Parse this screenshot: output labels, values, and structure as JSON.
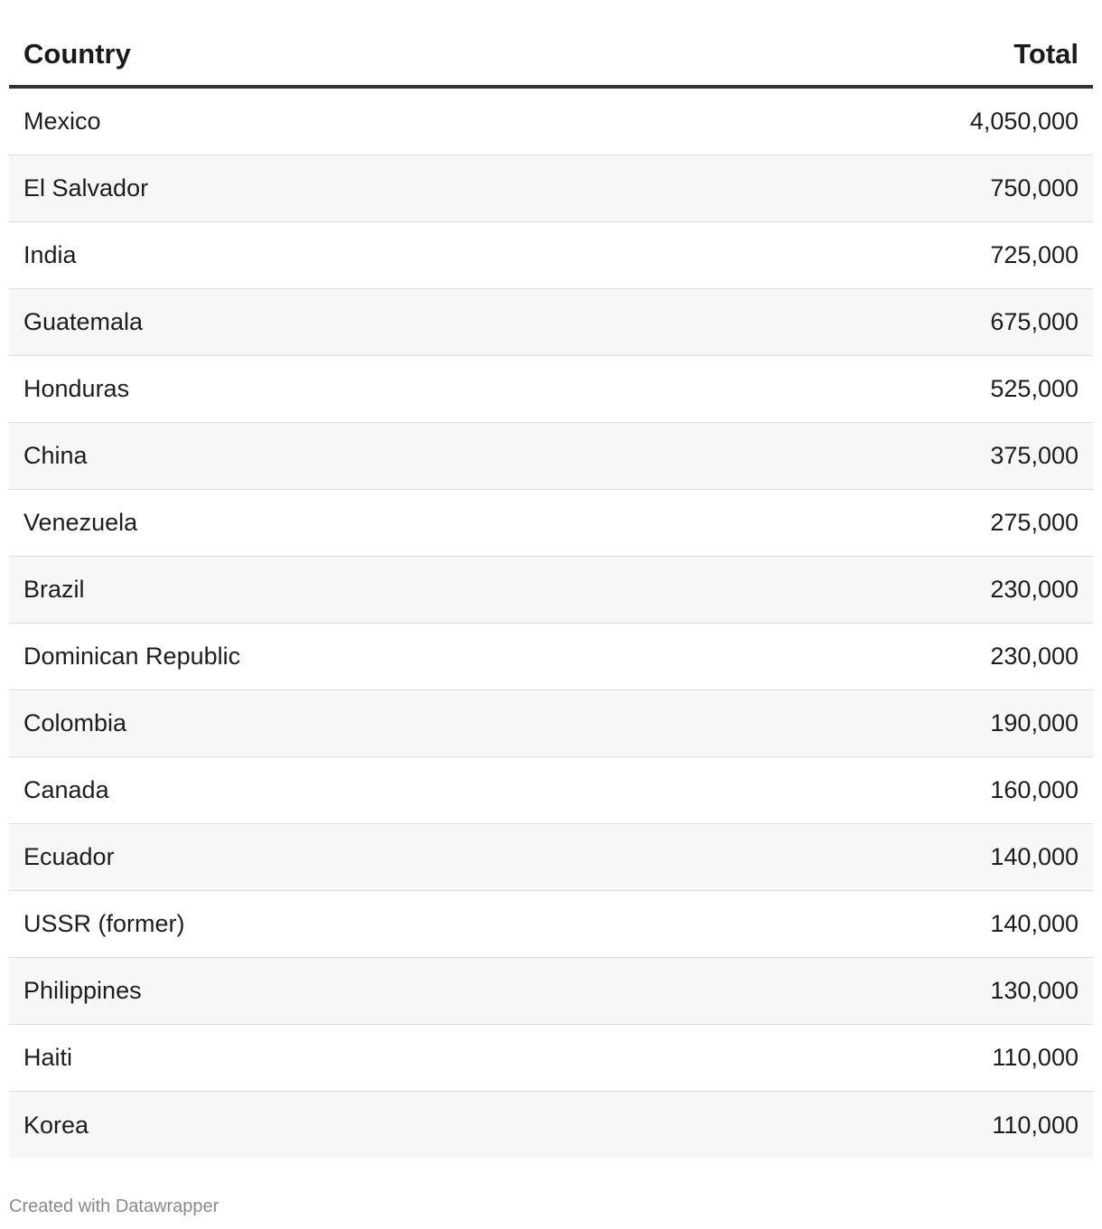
{
  "chart_data": {
    "type": "table",
    "columns": [
      "Country",
      "Total"
    ],
    "rows": [
      {
        "country": "Mexico",
        "total": "4,050,000"
      },
      {
        "country": "El Salvador",
        "total": "750,000"
      },
      {
        "country": "India",
        "total": "725,000"
      },
      {
        "country": "Guatemala",
        "total": "675,000"
      },
      {
        "country": "Honduras",
        "total": "525,000"
      },
      {
        "country": "China",
        "total": "375,000"
      },
      {
        "country": "Venezuela",
        "total": "275,000"
      },
      {
        "country": "Brazil",
        "total": "230,000"
      },
      {
        "country": "Dominican Republic",
        "total": "230,000"
      },
      {
        "country": "Colombia",
        "total": "190,000"
      },
      {
        "country": "Canada",
        "total": "160,000"
      },
      {
        "country": "Ecuador",
        "total": "140,000"
      },
      {
        "country": "USSR (former)",
        "total": "140,000"
      },
      {
        "country": "Philippines",
        "total": "130,000"
      },
      {
        "country": "Haiti",
        "total": "110,000"
      },
      {
        "country": "Korea",
        "total": "110,000"
      }
    ]
  },
  "footer": {
    "credit": "Created with Datawrapper"
  },
  "colors": {
    "header_rule": "#333333",
    "row_alt_bg": "#f7f7f7",
    "row_divider": "#dddddd",
    "footer_text": "#8a8a8a"
  }
}
